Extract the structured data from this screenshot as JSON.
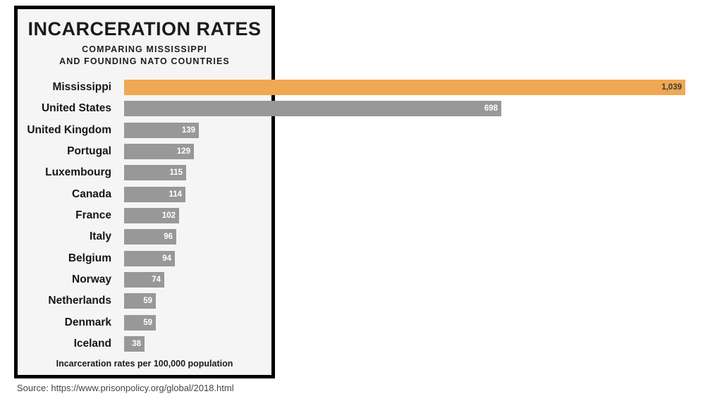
{
  "header": {
    "title": "INCARCERATION RATES",
    "subtitle_line1": "COMPARING MISSISSIPPI",
    "subtitle_line2": "AND FOUNDING NATO COUNTRIES"
  },
  "footer": {
    "caption": "Incarceration rates per 100,000 population",
    "source": "Source: https://www.prisonpolicy.org/global/2018.html"
  },
  "chart_data": {
    "type": "bar",
    "orientation": "horizontal",
    "title": "INCARCERATION RATES",
    "subtitle": "COMPARING MISSISSIPPI AND FOUNDING NATO COUNTRIES",
    "xlabel": "Incarceration rates per 100,000 population",
    "categories": [
      "Mississippi",
      "United States",
      "United Kingdom",
      "Portugal",
      "Luxembourg",
      "Canada",
      "France",
      "Italy",
      "Belgium",
      "Norway",
      "Netherlands",
      "Denmark",
      "Iceland"
    ],
    "values": [
      1039,
      698,
      139,
      129,
      115,
      114,
      102,
      96,
      94,
      74,
      59,
      59,
      38
    ],
    "value_labels": [
      "1,039",
      "698",
      "139",
      "129",
      "115",
      "114",
      "102",
      "96",
      "94",
      "74",
      "59",
      "59",
      "38"
    ],
    "highlight_index": 0,
    "xlim": [
      0,
      1039
    ],
    "grid": false,
    "legend": false,
    "colors": {
      "highlight_bar": "#F1A852",
      "default_bar": "#989898",
      "value_text_on_default": "#FFFFFF",
      "value_text_on_highlight": "#3B3B3B",
      "frame_border": "#000000",
      "frame_background": "#F5F5F5",
      "page_background": "#FFFFFF"
    }
  }
}
